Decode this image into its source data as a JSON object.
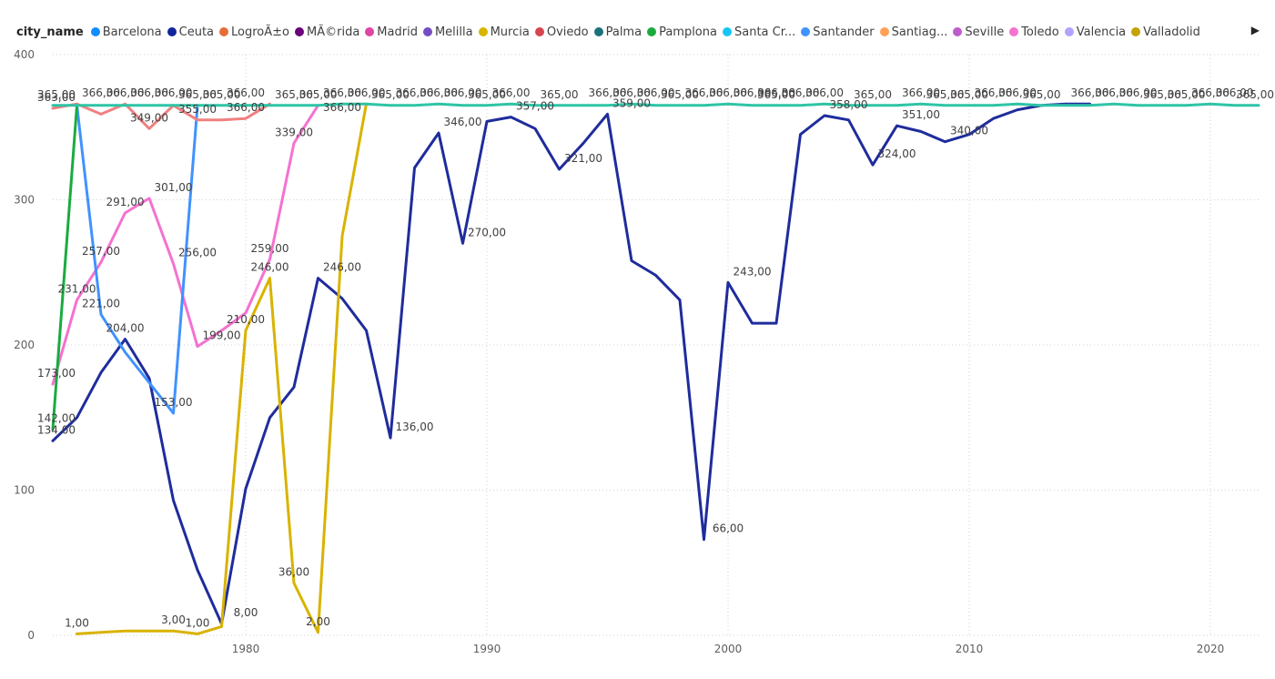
{
  "legend": {
    "title": "city_name",
    "items": [
      {
        "name": "Barcelona",
        "color": "#118DFF"
      },
      {
        "name": "Ceuta",
        "color": "#12239E"
      },
      {
        "name": "LogroÃ±o",
        "color": "#E66C37"
      },
      {
        "name": "MÃ©rida",
        "color": "#6B007B"
      },
      {
        "name": "Madrid",
        "color": "#E044A7"
      },
      {
        "name": "Melilla",
        "color": "#744EC2"
      },
      {
        "name": "Murcia",
        "color": "#D9B300"
      },
      {
        "name": "Oviedo",
        "color": "#D64550"
      },
      {
        "name": "Palma",
        "color": "#197278"
      },
      {
        "name": "Pamplona",
        "color": "#1AAB40"
      },
      {
        "name": "Santa Cr...",
        "color": "#15C6F4"
      },
      {
        "name": "Santander",
        "color": "#4092FF"
      },
      {
        "name": "Santiag...",
        "color": "#FFA058"
      },
      {
        "name": "Seville",
        "color": "#BE5DC9"
      },
      {
        "name": "Toledo",
        "color": "#F472D0"
      },
      {
        "name": "Valencia",
        "color": "#B5A1FF"
      },
      {
        "name": "Valladolid",
        "color": "#C4A200"
      }
    ],
    "next_icon": "triangle-right-icon"
  },
  "chart_data": {
    "type": "line",
    "xlabel": "",
    "ylabel": "",
    "xlim": [
      1972,
      2022
    ],
    "ylim": [
      0,
      400
    ],
    "x_ticks": [
      1980,
      1990,
      2000,
      2010,
      2020
    ],
    "y_ticks": [
      0,
      100,
      200,
      300,
      400
    ],
    "grid": true,
    "legend_position": "top",
    "series": [
      {
        "name": "Ceuta",
        "color": "#1F2C9C",
        "x": [
          1972,
          1973,
          1974,
          1975,
          1976,
          1977,
          1978,
          1979,
          1980,
          1981,
          1982,
          1983,
          1984,
          1985,
          1986,
          1987,
          1988,
          1989,
          1990,
          1991,
          1992,
          1993,
          1994,
          1995,
          1996,
          1997,
          1998,
          1999,
          2000,
          2001,
          2002,
          2003,
          2004,
          2005,
          2006,
          2007,
          2008,
          2009,
          2010,
          2011,
          2012,
          2013,
          2014,
          2015
        ],
        "y": [
          134,
          150,
          181,
          204,
          177,
          93,
          45,
          8,
          101,
          150,
          171,
          246,
          232,
          210,
          136,
          322,
          346,
          270,
          354,
          357,
          349,
          321,
          339,
          359,
          258,
          248,
          231,
          66,
          243,
          215,
          215,
          345,
          358,
          355,
          324,
          351,
          347,
          340,
          345,
          356,
          362,
          365,
          366,
          366
        ]
      },
      {
        "name": "Toledo",
        "color": "#F472D0",
        "x": [
          1972,
          1973,
          1974,
          1975,
          1976,
          1977,
          1978,
          1979,
          1980,
          1981,
          1982,
          1983
        ],
        "y": [
          173,
          231,
          257,
          291,
          301,
          256,
          199,
          210,
          222,
          259,
          339,
          365
        ]
      },
      {
        "name": "Santander",
        "color": "#4092FF",
        "x": [
          1973,
          1974,
          1975,
          1976,
          1977,
          1978
        ],
        "y": [
          365,
          221,
          195,
          174,
          153,
          365
        ]
      },
      {
        "name": "Pamplona",
        "color": "#1AAB40",
        "x": [
          1972,
          1973
        ],
        "y": [
          142,
          365
        ]
      },
      {
        "name": "Valladolid",
        "color": "#D9B300",
        "x": [
          1973,
          1974,
          1975,
          1976,
          1977,
          1978,
          1979,
          1980,
          1981,
          1982,
          1983,
          1984,
          1985
        ],
        "y": [
          1,
          2,
          3,
          3,
          3,
          1,
          6,
          210,
          246,
          36,
          2,
          275,
          366
        ]
      },
      {
        "name": "Oviedo",
        "color": "#F08080",
        "x": [
          1972,
          1973,
          1974,
          1975,
          1976,
          1977,
          1978,
          1979,
          1980,
          1981
        ],
        "y": [
          363,
          366,
          359,
          366,
          349,
          365,
          355,
          355,
          356,
          366
        ]
      },
      {
        "name": "Santa Cr...",
        "color": "#2EC4A6",
        "x": [
          1972,
          1973,
          1974,
          1975,
          1976,
          1977,
          1978,
          1979,
          1980,
          1981,
          1982,
          1983,
          1984,
          1985,
          1986,
          1987,
          1988,
          1989,
          1990,
          1991,
          1992,
          1993,
          1994,
          1995,
          1996,
          1997,
          1998,
          1999,
          2000,
          2001,
          2002,
          2003,
          2004,
          2005,
          2006,
          2007,
          2008,
          2009,
          2010,
          2011,
          2012,
          2013,
          2014,
          2015,
          2016,
          2017,
          2018,
          2019,
          2020,
          2021,
          2022
        ],
        "y": [
          365,
          365,
          365,
          365,
          365,
          365,
          365,
          365,
          365,
          365,
          365,
          365,
          366,
          366,
          365,
          365,
          366,
          365,
          365,
          366,
          365,
          365,
          365,
          365,
          366,
          365,
          365,
          365,
          366,
          365,
          365,
          365,
          366,
          365,
          365,
          365,
          366,
          365,
          365,
          365,
          366,
          365,
          365,
          365,
          366,
          365,
          365,
          365,
          366,
          365,
          365
        ]
      }
    ],
    "data_labels": [
      {
        "text": "365,00",
        "x": 1972,
        "y": 365
      },
      {
        "text": "363,00",
        "x": 1972,
        "y": 363
      },
      {
        "text": "366,00",
        "x": 1974,
        "y": 366
      },
      {
        "text": "366,00",
        "x": 1975,
        "y": 366
      },
      {
        "text": "366,00",
        "x": 1976,
        "y": 366
      },
      {
        "text": "366,00",
        "x": 1977,
        "y": 366
      },
      {
        "text": "365,00",
        "x": 1978,
        "y": 365
      },
      {
        "text": "365,00",
        "x": 1979,
        "y": 365
      },
      {
        "text": "366,00",
        "x": 1980,
        "y": 366
      },
      {
        "text": "366,00",
        "x": 1980,
        "y": 356
      },
      {
        "text": "365,00",
        "x": 1982,
        "y": 365
      },
      {
        "text": "365,00",
        "x": 1983,
        "y": 365
      },
      {
        "text": "366,00",
        "x": 1984,
        "y": 366
      },
      {
        "text": "366,00",
        "x": 1984,
        "y": 356
      },
      {
        "text": "366,00",
        "x": 1985,
        "y": 366
      },
      {
        "text": "365,00",
        "x": 1986,
        "y": 365
      },
      {
        "text": "366,00",
        "x": 1987,
        "y": 366
      },
      {
        "text": "366,00",
        "x": 1988,
        "y": 366
      },
      {
        "text": "366,00",
        "x": 1989,
        "y": 366
      },
      {
        "text": "365,00",
        "x": 1990,
        "y": 365
      },
      {
        "text": "366,00",
        "x": 1991,
        "y": 366
      },
      {
        "text": "365,00",
        "x": 1993,
        "y": 365
      },
      {
        "text": "366,00",
        "x": 1995,
        "y": 366
      },
      {
        "text": "366,00",
        "x": 1996,
        "y": 366
      },
      {
        "text": "366,00",
        "x": 1997,
        "y": 366
      },
      {
        "text": "365,00",
        "x": 1998,
        "y": 365
      },
      {
        "text": "366,00",
        "x": 1999,
        "y": 366
      },
      {
        "text": "366,00",
        "x": 2000,
        "y": 366
      },
      {
        "text": "366,00",
        "x": 2001,
        "y": 366
      },
      {
        "text": "366,00",
        "x": 2002,
        "y": 366
      },
      {
        "text": "365,00",
        "x": 2002,
        "y": 365
      },
      {
        "text": "366,00",
        "x": 2003,
        "y": 366
      },
      {
        "text": "366,00",
        "x": 2004,
        "y": 366
      },
      {
        "text": "365,00",
        "x": 2006,
        "y": 365
      },
      {
        "text": "366,00",
        "x": 2008,
        "y": 366
      },
      {
        "text": "365,00",
        "x": 2009,
        "y": 365
      },
      {
        "text": "365,00",
        "x": 2010,
        "y": 365
      },
      {
        "text": "366,00",
        "x": 2011,
        "y": 366
      },
      {
        "text": "366,00",
        "x": 2012,
        "y": 366
      },
      {
        "text": "365,00",
        "x": 2013,
        "y": 365
      },
      {
        "text": "366,00",
        "x": 2015,
        "y": 366
      },
      {
        "text": "366,00",
        "x": 2016,
        "y": 366
      },
      {
        "text": "366,00",
        "x": 2017,
        "y": 366
      },
      {
        "text": "365,00",
        "x": 2018,
        "y": 365
      },
      {
        "text": "365,00",
        "x": 2019,
        "y": 365
      },
      {
        "text": "366,00",
        "x": 2020,
        "y": 366
      },
      {
        "text": "366,00",
        "x": 2021,
        "y": 366
      },
      {
        "text": "365,00",
        "x": 2022,
        "y": 365
      },
      {
        "text": "349,00",
        "x": 1976,
        "y": 349
      },
      {
        "text": "355,00",
        "x": 1978,
        "y": 355
      },
      {
        "text": "301,00",
        "x": 1977,
        "y": 301
      },
      {
        "text": "291,00",
        "x": 1975,
        "y": 291
      },
      {
        "text": "257,00",
        "x": 1974,
        "y": 257
      },
      {
        "text": "231,00",
        "x": 1973,
        "y": 231
      },
      {
        "text": "221,00",
        "x": 1974,
        "y": 221
      },
      {
        "text": "256,00",
        "x": 1978,
        "y": 256
      },
      {
        "text": "204,00",
        "x": 1975,
        "y": 204
      },
      {
        "text": "199,00",
        "x": 1979,
        "y": 199
      },
      {
        "text": "210,00",
        "x": 1980,
        "y": 210
      },
      {
        "text": "259,00",
        "x": 1981,
        "y": 259
      },
      {
        "text": "246,00",
        "x": 1981,
        "y": 246
      },
      {
        "text": "339,00",
        "x": 1982,
        "y": 339
      },
      {
        "text": "246,00",
        "x": 1984,
        "y": 246
      },
      {
        "text": "173,00",
        "x": 1972,
        "y": 173
      },
      {
        "text": "153,00",
        "x": 1977,
        "y": 153
      },
      {
        "text": "142,00",
        "x": 1972,
        "y": 142
      },
      {
        "text": "134,00",
        "x": 1972,
        "y": 134
      },
      {
        "text": "136,00",
        "x": 1987,
        "y": 136
      },
      {
        "text": "346,00",
        "x": 1989,
        "y": 346
      },
      {
        "text": "270,00",
        "x": 1990,
        "y": 270
      },
      {
        "text": "357,00",
        "x": 1992,
        "y": 357
      },
      {
        "text": "321,00",
        "x": 1994,
        "y": 321
      },
      {
        "text": "359,00",
        "x": 1996,
        "y": 359
      },
      {
        "text": "243,00",
        "x": 2001,
        "y": 243
      },
      {
        "text": "66,00",
        "x": 2000,
        "y": 66
      },
      {
        "text": "358,00",
        "x": 2005,
        "y": 358
      },
      {
        "text": "324,00",
        "x": 2007,
        "y": 324
      },
      {
        "text": "351,00",
        "x": 2008,
        "y": 351
      },
      {
        "text": "340,00",
        "x": 2010,
        "y": 340
      },
      {
        "text": "1,00",
        "x": 1973,
        "y": 1
      },
      {
        "text": "3,00",
        "x": 1977,
        "y": 3
      },
      {
        "text": "1,00",
        "x": 1978,
        "y": 1
      },
      {
        "text": "8,00",
        "x": 1980,
        "y": 8
      },
      {
        "text": "36,00",
        "x": 1982,
        "y": 36
      },
      {
        "text": "2,00",
        "x": 1983,
        "y": 2
      }
    ]
  }
}
